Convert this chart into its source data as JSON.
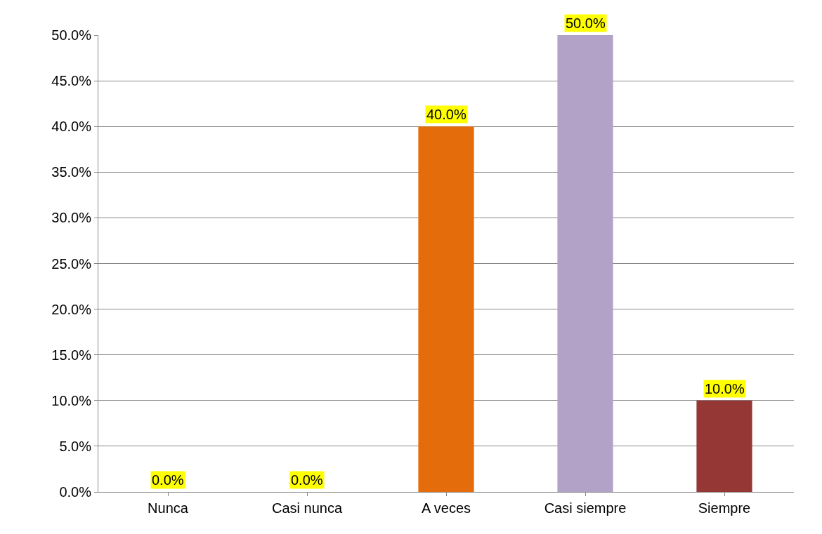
{
  "chart_data": {
    "type": "bar",
    "categories": [
      "Nunca",
      "Casi nunca",
      "A veces",
      "Casi siempre",
      "Siempre"
    ],
    "values": [
      0,
      0,
      40,
      50,
      10
    ],
    "colors": [
      "#4f81bd",
      "#c00000",
      "#e46c0a",
      "#b3a2c7",
      "#953735"
    ],
    "value_labels": [
      "0.0%",
      "0.0%",
      "40.0%",
      "50.0%",
      "10.0%"
    ],
    "ylim": [
      0,
      50
    ],
    "yticks": [
      {
        "value": 0,
        "label": "0.0%"
      },
      {
        "value": 5,
        "label": "5.0%"
      },
      {
        "value": 10,
        "label": "10.0%"
      },
      {
        "value": 15,
        "label": "15.0%"
      },
      {
        "value": 20,
        "label": "20.0%"
      },
      {
        "value": 25,
        "label": "25.0%"
      },
      {
        "value": 30,
        "label": "30.0%"
      },
      {
        "value": 35,
        "label": "35.0%"
      },
      {
        "value": 40,
        "label": "40.0%"
      },
      {
        "value": 45,
        "label": "45.0%"
      },
      {
        "value": 50,
        "label": "50.0%"
      }
    ],
    "grid": "y"
  }
}
